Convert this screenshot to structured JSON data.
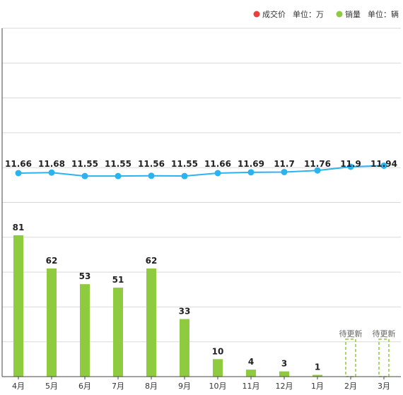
{
  "legend": [
    {
      "name": "成交价",
      "unit": "单位：万",
      "color": "#e8423f",
      "marker": "dot"
    },
    {
      "name": "销量",
      "unit": "单位：辆",
      "color": "#8ecb3f",
      "marker": "dot"
    }
  ],
  "pending_label": "待更新",
  "chart_data": {
    "type": "bar",
    "categories": [
      "4月",
      "5月",
      "6月",
      "7月",
      "8月",
      "9月",
      "10月",
      "11月",
      "12月",
      "1月",
      "2月",
      "3月"
    ],
    "series": [
      {
        "name": "销量",
        "type": "bar",
        "color": "#8ecb3f",
        "values": [
          81,
          62,
          53,
          51,
          62,
          33,
          10,
          4,
          3,
          1,
          null,
          null
        ]
      },
      {
        "name": "成交价",
        "type": "line",
        "color": "#2bb3ee",
        "values": [
          11.66,
          11.68,
          11.55,
          11.55,
          11.56,
          11.55,
          11.66,
          11.69,
          11.7,
          11.76,
          11.9,
          11.94
        ]
      }
    ],
    "grid": true,
    "legend_position": "top-right"
  }
}
